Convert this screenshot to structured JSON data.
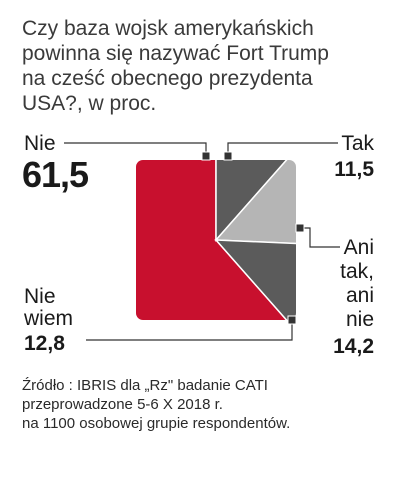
{
  "title_lines": [
    "Czy baza wojsk amerykańskich",
    "powinna się nazywać Fort Trump",
    "na cześć obecnego prezydenta",
    "USA?, w proc."
  ],
  "labels": {
    "nie": "Nie",
    "tak": "Tak",
    "ani_lines": [
      "Ani",
      "tak,",
      "ani",
      "nie"
    ],
    "nie_wiem_lines": [
      "Nie",
      "wiem"
    ]
  },
  "values_text": {
    "nie": "61,5",
    "tak": "11,5",
    "ani": "14,2",
    "nie_wiem": "12,8"
  },
  "source_lines": [
    "Źródło : IBRIS dla „Rz\" badanie CATI",
    "przeprowadzone 5-6 X 2018 r.",
    "na 1100 osobowej grupie respondentów."
  ],
  "chart_data": {
    "type": "pie",
    "shape": "square",
    "slices": [
      {
        "label": "Nie",
        "value": 61.5,
        "color": "#c8102e"
      },
      {
        "label": "Tak",
        "value": 11.5,
        "color": "#5b5b5b"
      },
      {
        "label": "Ani tak, ani nie",
        "value": 14.2,
        "color": "#b5b5b5"
      },
      {
        "label": "Nie wiem",
        "value": 12.8,
        "color": "#5b5b5b"
      }
    ]
  }
}
